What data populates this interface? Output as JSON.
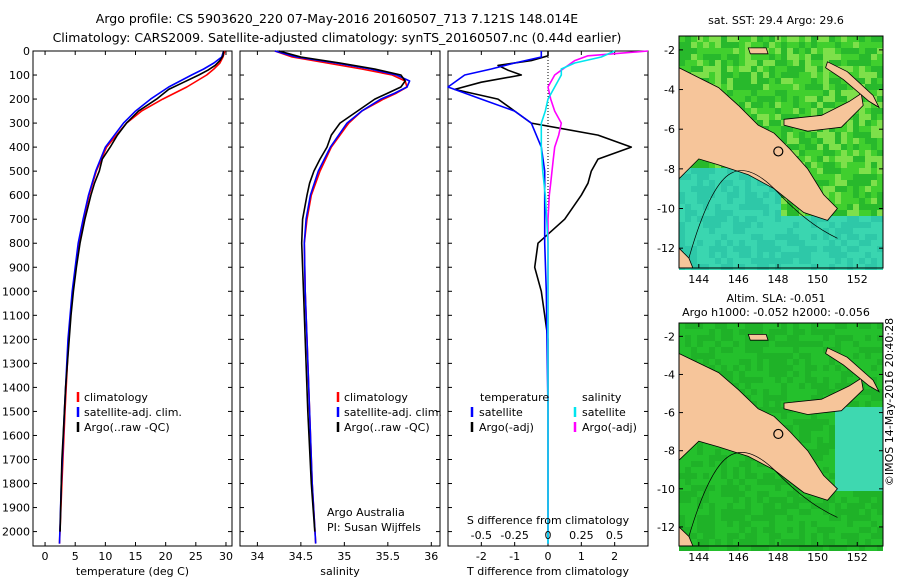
{
  "header": {
    "line1": "Argo profile: CS 5903620_220 07-May-2016 20160507_713 7.121S 148.014E",
    "line2": "Climatology: CARS2009. Satellite-adjusted climatology: synTS_20160507.nc (0.44d earlier)"
  },
  "side_label": "©IMOS 14-May-2016 20:40:28",
  "colors": {
    "climatology": "#ff0000",
    "satellite": "#0000ff",
    "argo": "#000000",
    "s_satellite": "#00e5ee",
    "s_argo": "#ff00ff",
    "land": "#f6c59a",
    "ocean_green": "#22c02a",
    "ocean_cyan": "#20c8c8"
  },
  "chart_data": [
    {
      "type": "line",
      "id": "temperature",
      "xlabel": "temperature (deg C)",
      "xlim": [
        -2,
        31
      ],
      "ylim": [
        2060,
        0
      ],
      "xticks": [
        0,
        5,
        10,
        15,
        20,
        25,
        30
      ],
      "yticks": [
        0,
        100,
        200,
        300,
        400,
        500,
        600,
        700,
        800,
        900,
        1000,
        1100,
        1200,
        1300,
        1400,
        1500,
        1600,
        1700,
        1800,
        1900,
        2000
      ],
      "legend": [
        "climatology",
        "satellite-adj. clim.",
        "Argo(..raw -QC)"
      ],
      "series": [
        {
          "name": "climatology",
          "depth": [
            0,
            25,
            50,
            75,
            100,
            150,
            200,
            250,
            300,
            400,
            500,
            600,
            700,
            800,
            1000,
            1200,
            1500,
            1800,
            2050
          ],
          "values": [
            29.8,
            29.5,
            29.0,
            28.0,
            26.8,
            23.5,
            19.5,
            16.0,
            13.5,
            10.2,
            8.5,
            7.3,
            6.4,
            5.6,
            4.6,
            3.9,
            3.3,
            2.8,
            2.4
          ]
        },
        {
          "name": "satellite-adj. clim.",
          "depth": [
            0,
            25,
            50,
            75,
            100,
            150,
            200,
            250,
            300,
            400,
            500,
            600,
            700,
            800,
            1000,
            1200,
            1500,
            1800,
            2050
          ],
          "values": [
            29.6,
            29.3,
            28.0,
            26.3,
            24.3,
            20.5,
            17.5,
            15.0,
            13.0,
            10.0,
            8.4,
            7.2,
            6.3,
            5.5,
            4.5,
            3.8,
            3.2,
            2.7,
            2.4
          ]
        },
        {
          "name": "Argo(..raw -QC)",
          "depth": [
            0,
            20,
            40,
            60,
            80,
            100,
            130,
            160,
            200,
            250,
            300,
            350,
            400,
            450,
            500,
            550,
            600,
            700,
            800,
            900,
            1000,
            1100,
            1200,
            1300,
            1400,
            1500,
            1600,
            1700,
            1800,
            1900,
            2000
          ],
          "values": [
            29.6,
            29.5,
            29.0,
            28.2,
            27.0,
            25.5,
            23.0,
            20.5,
            18.5,
            15.5,
            13.5,
            12.0,
            10.8,
            9.5,
            9.0,
            8.2,
            7.6,
            6.6,
            5.8,
            5.2,
            4.7,
            4.3,
            4.0,
            3.7,
            3.4,
            3.2,
            3.0,
            2.8,
            2.7,
            2.6,
            2.5
          ]
        }
      ]
    },
    {
      "type": "line",
      "id": "salinity",
      "xlabel": "salinity",
      "xlim": [
        33.8,
        36.1
      ],
      "ylim": [
        2060,
        0
      ],
      "xticks": [
        34,
        34.5,
        35,
        35.5,
        36
      ],
      "annotation": [
        "Argo Australia",
        "PI: Susan Wijffels"
      ],
      "legend": [
        "climatology",
        "satellite-adj. clim.",
        "Argo(..raw -QC)"
      ],
      "series": [
        {
          "name": "climatology",
          "depth": [
            0,
            25,
            50,
            75,
            100,
            125,
            150,
            175,
            200,
            250,
            300,
            400,
            500,
            600,
            700,
            800,
            1000,
            1200,
            1500,
            1800,
            2050
          ],
          "values": [
            34.2,
            34.4,
            34.8,
            35.2,
            35.55,
            35.7,
            35.72,
            35.6,
            35.45,
            35.2,
            35.05,
            34.85,
            34.72,
            34.62,
            34.57,
            34.54,
            34.55,
            34.57,
            34.6,
            34.63,
            34.67
          ]
        },
        {
          "name": "satellite-adj. clim.",
          "depth": [
            0,
            25,
            50,
            75,
            100,
            125,
            150,
            175,
            200,
            250,
            300,
            400,
            500,
            600,
            700,
            800,
            1000,
            1200,
            1500,
            1800,
            2050
          ],
          "values": [
            34.2,
            34.45,
            34.9,
            35.3,
            35.6,
            35.75,
            35.72,
            35.58,
            35.42,
            35.2,
            35.03,
            34.84,
            34.7,
            34.61,
            34.56,
            34.54,
            34.55,
            34.57,
            34.6,
            34.63,
            34.67
          ]
        },
        {
          "name": "Argo(..raw -QC)",
          "depth": [
            0,
            25,
            50,
            75,
            100,
            125,
            150,
            175,
            200,
            250,
            300,
            350,
            400,
            450,
            500,
            550,
            600,
            700,
            800,
            900,
            1000,
            1200,
            1500,
            1800,
            2000
          ],
          "values": [
            34.25,
            34.5,
            34.95,
            35.35,
            35.65,
            35.7,
            35.65,
            35.5,
            35.35,
            35.15,
            34.95,
            34.85,
            34.8,
            34.72,
            34.65,
            34.6,
            34.57,
            34.52,
            34.51,
            34.52,
            34.53,
            34.55,
            34.58,
            34.62,
            34.66
          ]
        }
      ]
    },
    {
      "type": "line",
      "id": "difference",
      "xlabel": "T difference from climatology",
      "xlabel_top": "S difference from climatology",
      "xlim": [
        -3,
        3
      ],
      "ylim": [
        2060,
        0
      ],
      "xticks": [
        -2,
        -1,
        0,
        1,
        2
      ],
      "xticks_s": [
        -0.5,
        -0.25,
        0,
        0.25,
        0.5
      ],
      "legend_t": [
        "temperature",
        "satellite",
        "Argo(-adj)"
      ],
      "legend_s": [
        "salinity",
        "satellite",
        "Argo(-adj)"
      ],
      "series": [
        {
          "name": "T satellite",
          "depth": [
            0,
            25,
            50,
            75,
            100,
            150,
            200,
            250,
            300,
            400,
            500,
            600,
            700,
            800,
            1000,
            1500,
            2050
          ],
          "values": [
            -0.2,
            -0.2,
            -1.0,
            -1.7,
            -2.5,
            -3.0,
            -2.0,
            -1.0,
            -0.5,
            -0.2,
            -0.1,
            -0.1,
            -0.1,
            -0.1,
            -0.05,
            0,
            0
          ]
        },
        {
          "name": "T Argo(-adj)",
          "depth": [
            0,
            20,
            40,
            60,
            80,
            100,
            130,
            160,
            200,
            250,
            300,
            350,
            400,
            450,
            500,
            550,
            600,
            700,
            800,
            900,
            1000,
            1100,
            1200,
            1300,
            1500,
            1800,
            2000
          ],
          "values": [
            0,
            0,
            -0.5,
            -1.5,
            -1.2,
            -0.8,
            -2.0,
            -2.8,
            -1.5,
            -1.0,
            -0.5,
            1.5,
            2.5,
            1.5,
            1.3,
            1.2,
            1.0,
            0.5,
            -0.3,
            -0.4,
            -0.2,
            -0.1,
            0,
            0,
            0,
            0,
            0
          ]
        },
        {
          "name": "S satellite",
          "depth": [
            0,
            25,
            50,
            75,
            100,
            150,
            200,
            250,
            300,
            400,
            500,
            600,
            700,
            800,
            1000,
            1500,
            2050
          ],
          "values": [
            0.5,
            0.4,
            0.2,
            0.1,
            0.1,
            0.05,
            0,
            -0.02,
            -0.05,
            -0.05,
            -0.04,
            -0.02,
            -0.01,
            0,
            0,
            0,
            0
          ]
        },
        {
          "name": "S Argo(-adj)",
          "depth": [
            0,
            20,
            40,
            60,
            80,
            100,
            150,
            200,
            250,
            300,
            350,
            400,
            450,
            500,
            550,
            600,
            700,
            800,
            1000,
            1500,
            2000
          ],
          "values": [
            0.75,
            0.3,
            0.2,
            0.15,
            0.1,
            0.05,
            0,
            0.02,
            0.05,
            0.1,
            0.08,
            0.05,
            0.04,
            0.03,
            0.02,
            0.01,
            0,
            0,
            0,
            0,
            0
          ]
        }
      ]
    },
    {
      "type": "heatmap",
      "id": "sst_map",
      "title": "sat. SST: 29.4  Argo: 29.6",
      "xticks": [
        144,
        146,
        148,
        150,
        152
      ],
      "yticks": [
        -2,
        -4,
        -6,
        -8,
        -10,
        -12
      ],
      "xlim": [
        143,
        153.3
      ],
      "ylim": [
        -13,
        -1.3
      ],
      "argo_position": {
        "lon": 148.014,
        "lat": -7.121
      }
    },
    {
      "type": "heatmap",
      "id": "sla_map",
      "title": "Altim. SLA: -0.051",
      "subtitle": "Argo h1000: -0.052 h2000: -0.056",
      "xticks": [
        144,
        146,
        148,
        150,
        152
      ],
      "yticks": [
        -2,
        -4,
        -6,
        -8,
        -10,
        -12
      ],
      "xlim": [
        143,
        153.3
      ],
      "ylim": [
        -13,
        -1.3
      ],
      "argo_position": {
        "lon": 148.014,
        "lat": -7.121
      }
    }
  ]
}
